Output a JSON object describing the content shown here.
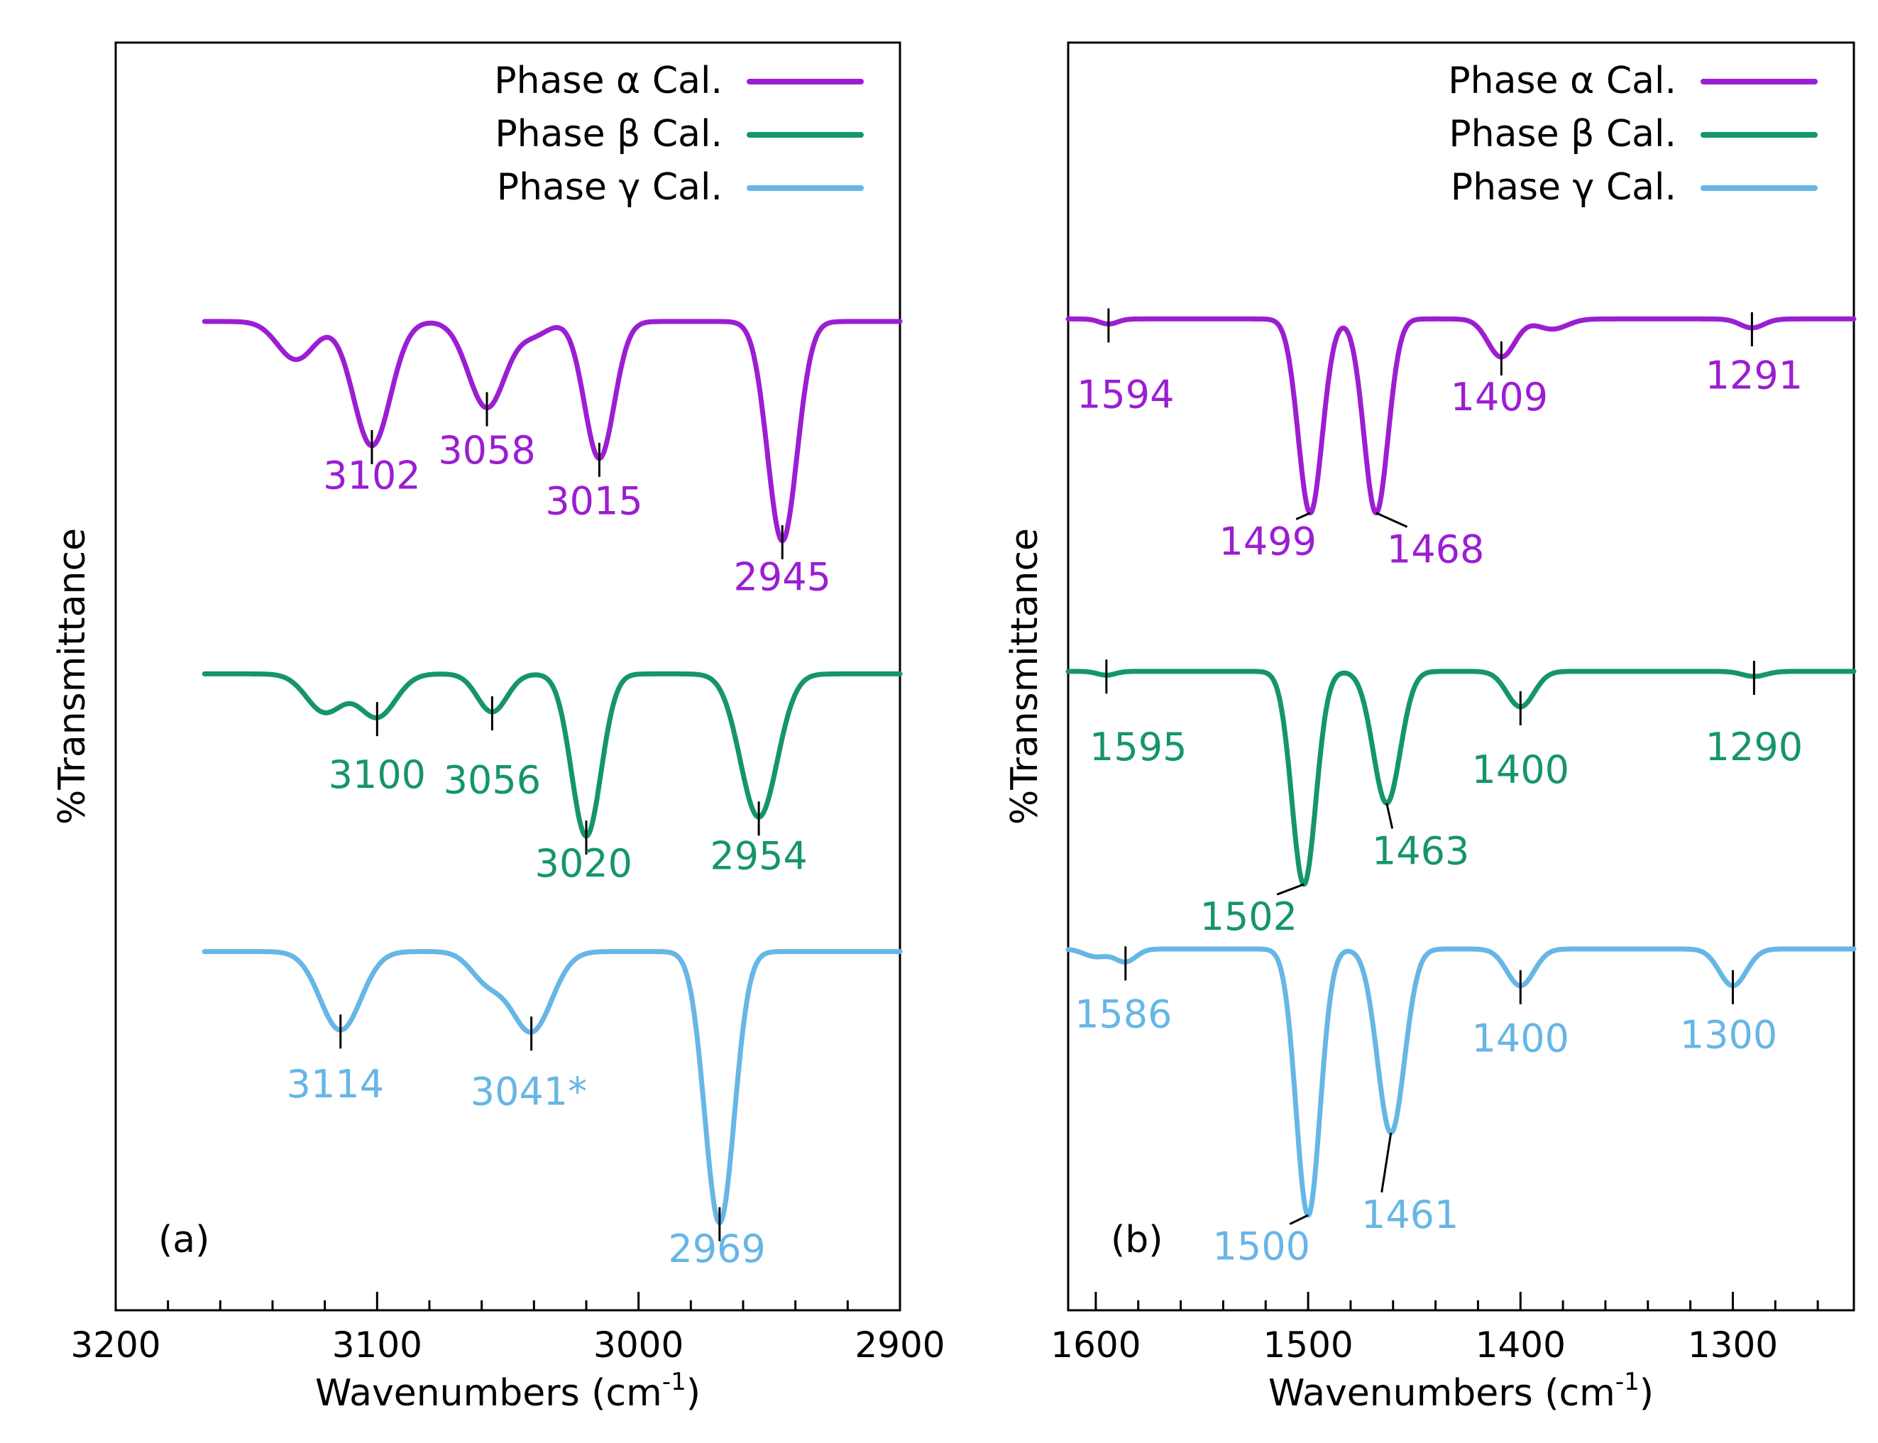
{
  "colors": {
    "alpha": "#9B1ED2",
    "beta": "#15956A",
    "gamma": "#66B6E6",
    "axis": "#000000"
  },
  "chart_data": [
    {
      "type": "line",
      "panel_label": "(a)",
      "xlabel": "Wavenumbers (cm",
      "xlabel_sup": "-1",
      "xlabel_close": ")",
      "ylabel": "%Transmittance",
      "xlim": [
        3200,
        2900
      ],
      "xticks": [
        "3200",
        "3100",
        "3000",
        "2900"
      ],
      "xtick_values": [
        3200,
        3100,
        3000,
        2900
      ],
      "minor_step": 20,
      "legend_position": "top-right",
      "legend": [
        "Phase α Cal.",
        "Phase β Cal.",
        "Phase γ Cal."
      ],
      "series": [
        {
          "name": "Phase α Cal.",
          "color_key": "alpha",
          "baseline": 0.78,
          "vmin": 3166,
          "vmax": 2900,
          "peaks": [
            {
              "x": 3131,
              "depth": 0.03,
              "width": 10
            },
            {
              "x": 3102,
              "depth": 0.098,
              "width": 10
            },
            {
              "x": 3058,
              "depth": 0.068,
              "width": 10
            },
            {
              "x": 3040,
              "depth": 0.01,
              "width": 8
            },
            {
              "x": 3015,
              "depth": 0.108,
              "width": 8
            },
            {
              "x": 2945,
              "depth": 0.173,
              "width": 8
            }
          ],
          "labels": [
            {
              "value": "3102",
              "x": 3102,
              "tx": 3102,
              "ty": 0.648
            },
            {
              "value": "3058",
              "x": 3058,
              "tx": 3058,
              "ty": 0.668
            },
            {
              "value": "3015",
              "x": 3015,
              "tx": 3017,
              "ty": 0.628
            },
            {
              "value": "2945",
              "x": 2945,
              "tx": 2945,
              "ty": 0.568
            }
          ]
        },
        {
          "name": "Phase β Cal.",
          "color_key": "beta",
          "baseline": 0.502,
          "vmin": 3166,
          "vmax": 2900,
          "peaks": [
            {
              "x": 3120,
              "depth": 0.03,
              "width": 10
            },
            {
              "x": 3100,
              "depth": 0.034,
              "width": 10
            },
            {
              "x": 3056,
              "depth": 0.03,
              "width": 8
            },
            {
              "x": 3020,
              "depth": 0.128,
              "width": 8
            },
            {
              "x": 2954,
              "depth": 0.113,
              "width": 10
            }
          ],
          "labels": [
            {
              "value": "3100",
              "x": 3100,
              "tx": 3100,
              "ty": 0.412
            },
            {
              "value": "3056",
              "x": 3056,
              "tx": 3056,
              "ty": 0.408
            },
            {
              "value": "3020",
              "x": 3020,
              "tx": 3021,
              "ty": 0.342
            },
            {
              "value": "2954",
              "x": 2954,
              "tx": 2954,
              "ty": 0.348
            }
          ]
        },
        {
          "name": "Phase γ Cal.",
          "color_key": "gamma",
          "baseline": 0.283,
          "vmin": 3166,
          "vmax": 2900,
          "peaks": [
            {
              "x": 3114,
              "depth": 0.062,
              "width": 11
            },
            {
              "x": 3058,
              "depth": 0.022,
              "width": 9
            },
            {
              "x": 3041,
              "depth": 0.063,
              "width": 11
            },
            {
              "x": 2969,
              "depth": 0.214,
              "width": 8
            }
          ],
          "labels": [
            {
              "value": "3114",
              "x": 3114,
              "tx": 3116,
              "ty": 0.168
            },
            {
              "value": "3041*",
              "x": 3041,
              "tx": 3042,
              "ty": 0.162
            },
            {
              "value": "2969",
              "x": 2969,
              "tx": 2970,
              "ty": 0.038
            }
          ]
        }
      ]
    },
    {
      "type": "line",
      "panel_label": "(b)",
      "xlabel": "Wavenumbers (cm",
      "xlabel_sup": "-1",
      "xlabel_close": ")",
      "ylabel": "%Transmittance",
      "xlim": [
        1613,
        1243
      ],
      "xticks": [
        "1600",
        "1500",
        "1400",
        "1300"
      ],
      "xtick_values": [
        1600,
        1500,
        1400,
        1300
      ],
      "minor_step": 20,
      "legend_position": "top-right",
      "legend": [
        "Phase α Cal.",
        "Phase β Cal.",
        "Phase γ Cal."
      ],
      "series": [
        {
          "name": "Phase α Cal.",
          "color_key": "alpha",
          "baseline": 0.782,
          "vmin": 1613,
          "vmax": 1243,
          "peaks": [
            {
              "x": 1594,
              "depth": 0.004,
              "width": 6
            },
            {
              "x": 1499,
              "depth": 0.153,
              "width": 8
            },
            {
              "x": 1468,
              "depth": 0.153,
              "width": 8
            },
            {
              "x": 1409,
              "depth": 0.03,
              "width": 9
            },
            {
              "x": 1385,
              "depth": 0.008,
              "width": 10
            },
            {
              "x": 1291,
              "depth": 0.007,
              "width": 8
            }
          ],
          "labels": [
            {
              "value": "1594",
              "x": 1594,
              "tx": 1586,
              "ty": 0.712
            },
            {
              "value": "1499",
              "x": 1499,
              "tx": 1519,
              "ty": 0.596,
              "leader": true
            },
            {
              "value": "1468",
              "x": 1468,
              "tx": 1440,
              "ty": 0.59,
              "leader": true
            },
            {
              "value": "1409",
              "x": 1409,
              "tx": 1410,
              "ty": 0.71
            },
            {
              "value": "1291",
              "x": 1291,
              "tx": 1290,
              "ty": 0.727
            }
          ]
        },
        {
          "name": "Phase β Cal.",
          "color_key": "beta",
          "baseline": 0.504,
          "vmin": 1613,
          "vmax": 1243,
          "peaks": [
            {
              "x": 1595,
              "depth": 0.003,
              "width": 6
            },
            {
              "x": 1502,
              "depth": 0.168,
              "width": 8
            },
            {
              "x": 1463,
              "depth": 0.104,
              "width": 9
            },
            {
              "x": 1400,
              "depth": 0.028,
              "width": 9
            },
            {
              "x": 1290,
              "depth": 0.004,
              "width": 8
            }
          ],
          "labels": [
            {
              "value": "1595",
              "x": 1595,
              "tx": 1580,
              "ty": 0.434
            },
            {
              "value": "1400",
              "x": 1400,
              "tx": 1400,
              "ty": 0.416
            },
            {
              "value": "1290",
              "x": 1290,
              "tx": 1290,
              "ty": 0.434
            },
            {
              "value": "1463",
              "x": 1463,
              "tx": 1447,
              "ty": 0.352,
              "leader": true
            },
            {
              "value": "1502",
              "x": 1502,
              "tx": 1528,
              "ty": 0.3,
              "leader": true
            }
          ]
        },
        {
          "name": "Phase γ Cal.",
          "color_key": "gamma",
          "baseline": 0.285,
          "vmin": 1613,
          "vmax": 1243,
          "peaks": [
            {
              "x": 1600,
              "depth": 0.006,
              "width": 8
            },
            {
              "x": 1586,
              "depth": 0.01,
              "width": 7
            },
            {
              "x": 1500,
              "depth": 0.21,
              "width": 8
            },
            {
              "x": 1461,
              "depth": 0.145,
              "width": 9
            },
            {
              "x": 1400,
              "depth": 0.029,
              "width": 9
            },
            {
              "x": 1300,
              "depth": 0.029,
              "width": 9
            }
          ],
          "labels": [
            {
              "value": "1586",
              "x": 1586,
              "tx": 1587,
              "ty": 0.223
            },
            {
              "value": "1400",
              "x": 1400,
              "tx": 1400,
              "ty": 0.204
            },
            {
              "value": "1300",
              "x": 1300,
              "tx": 1302,
              "ty": 0.207
            },
            {
              "value": "1461",
              "x": 1461,
              "tx": 1452,
              "ty": 0.065,
              "leader": true
            },
            {
              "value": "1500",
              "x": 1500,
              "tx": 1522,
              "ty": 0.04,
              "leader": true
            }
          ]
        }
      ]
    }
  ]
}
